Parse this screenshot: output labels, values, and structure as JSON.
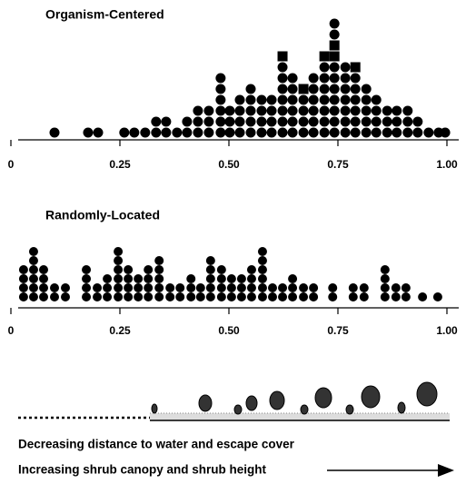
{
  "chart_data": [
    {
      "type": "dot",
      "title": "Organism-Centered",
      "xlim": [
        0,
        1
      ],
      "xticks": [
        0,
        0.25,
        {
          "value": 0.5,
          "label": "0.50"
        },
        0.75,
        {
          "value": 1,
          "label": "1.00"
        }
      ],
      "series": [
        {
          "marker": "circle",
          "color": "#000000",
          "x": [
            0.1,
            0.177,
            0.2,
            0.26,
            0.283,
            0.308,
            0.333,
            0.356,
            0.381,
            0.404,
            0.429,
            0.454,
            0.481,
            0.502,
            0.525,
            0.55,
            0.575,
            0.598,
            0.623,
            0.646,
            0.671,
            0.694,
            0.719,
            0.742,
            0.767,
            0.79,
            0.815,
            0.838,
            0.863,
            0.885,
            0.91,
            0.933,
            0.958,
            0.981,
            0.996
          ],
          "values": [
            1,
            1,
            1,
            1,
            1,
            1,
            2,
            2,
            1,
            2,
            3,
            3,
            6,
            3,
            4,
            5,
            4,
            4,
            7,
            6,
            4,
            6,
            7,
            7,
            7,
            6,
            5,
            4,
            3,
            3,
            3,
            2,
            1,
            1,
            1
          ]
        },
        {
          "marker": "square",
          "color": "#000000",
          "x": [
            0.623,
            0.671,
            0.719,
            0.742,
            0.79
          ],
          "values": [
            1,
            1,
            1,
            2,
            1
          ]
        },
        {
          "marker": "circle",
          "color": "#000000",
          "x": [
            0.742
          ],
          "values": [
            2
          ]
        }
      ]
    },
    {
      "type": "dot",
      "title": "Randomly-Located",
      "xlim": [
        0,
        1
      ],
      "xticks": [
        0,
        0.25,
        {
          "value": 0.5,
          "label": "0.50"
        },
        0.75,
        {
          "value": 1,
          "label": "1.00"
        }
      ],
      "series": [
        {
          "marker": "circle",
          "color": "#000000",
          "x": [
            0.029,
            0.052,
            0.075,
            0.1,
            0.125,
            0.173,
            0.198,
            0.221,
            0.246,
            0.269,
            0.292,
            0.315,
            0.34,
            0.365,
            0.388,
            0.413,
            0.435,
            0.458,
            0.483,
            0.506,
            0.529,
            0.552,
            0.577,
            0.6,
            0.623,
            0.646,
            0.671,
            0.694,
            0.738,
            0.785,
            0.81,
            0.858,
            0.883,
            0.906,
            0.944,
            0.979
          ],
          "values": [
            4,
            6,
            4,
            2,
            2,
            4,
            2,
            3,
            6,
            4,
            3,
            4,
            5,
            2,
            2,
            3,
            2,
            5,
            4,
            3,
            3,
            4,
            6,
            2,
            2,
            3,
            2,
            2,
            2,
            2,
            2,
            4,
            2,
            2,
            1,
            1
          ]
        }
      ]
    }
  ],
  "caption": {
    "line1": "Decreasing distance to water and escape cover",
    "line2": "Increasing shrub canopy and shrub height"
  }
}
